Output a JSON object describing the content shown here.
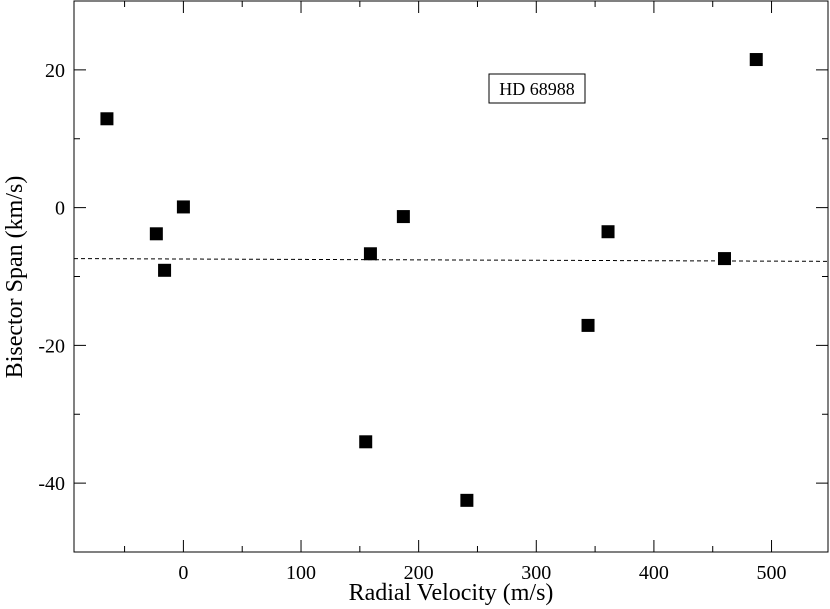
{
  "chart_data": {
    "type": "scatter",
    "xlabel": "Radial Velocity (m/s)",
    "ylabel": "Bisector Span (km/s)",
    "xlim": [
      -93,
      548
    ],
    "ylim": [
      -50,
      30
    ],
    "xticks_major": [
      0,
      100,
      200,
      300,
      400,
      500
    ],
    "xticks_minor": [
      -50,
      50,
      150,
      250,
      350,
      450
    ],
    "yticks_major": [
      -40,
      -20,
      0,
      20
    ],
    "yticks_minor": [
      -30,
      -10,
      10
    ],
    "grid": false,
    "legend_text": "HD 68988",
    "legend_placement": "top-center-right",
    "marker": "square",
    "marker_color": "#000000",
    "series": [
      {
        "x": [
          -65,
          -23,
          -16,
          0,
          155,
          159,
          187,
          241,
          344,
          361,
          460,
          487
        ],
        "y": [
          12.9,
          -3.8,
          -9.1,
          0.1,
          -34.0,
          -6.7,
          -1.3,
          -42.5,
          -17.1,
          -3.5,
          -7.4,
          21.5
        ]
      }
    ],
    "fit_line": {
      "style": "dashed",
      "x": [
        -93,
        548
      ],
      "y": [
        -7.4,
        -7.8
      ]
    }
  }
}
